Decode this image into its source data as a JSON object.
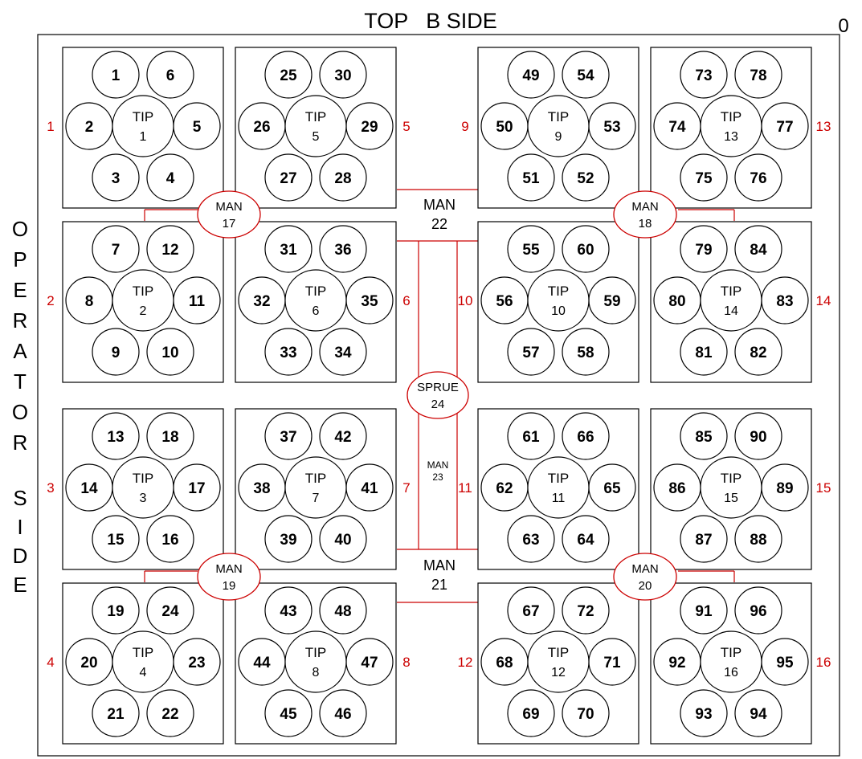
{
  "header": {
    "title": "TOP   B SIDE",
    "corner_label": "0"
  },
  "side_label": {
    "word1": [
      "O",
      "P",
      "E",
      "R",
      "A",
      "T",
      "O",
      "R"
    ],
    "word2": [
      "S",
      "I",
      "D",
      "E"
    ]
  },
  "colors": {
    "line": "#000000",
    "manifold": "#cc0000",
    "zone_label": "#cc0000",
    "background": "#ffffff"
  },
  "tip_prefix": "TIP",
  "blocks": [
    {
      "tip": "1",
      "zone": "1",
      "cavities": [
        "1",
        "6",
        "2",
        "5",
        "3",
        "4"
      ]
    },
    {
      "tip": "5",
      "zone": "5",
      "cavities": [
        "25",
        "30",
        "26",
        "29",
        "27",
        "28"
      ]
    },
    {
      "tip": "9",
      "zone": "9",
      "cavities": [
        "49",
        "54",
        "50",
        "53",
        "51",
        "52"
      ]
    },
    {
      "tip": "13",
      "zone": "13",
      "cavities": [
        "73",
        "78",
        "74",
        "77",
        "75",
        "76"
      ]
    },
    {
      "tip": "2",
      "zone": "2",
      "cavities": [
        "7",
        "12",
        "8",
        "11",
        "9",
        "10"
      ]
    },
    {
      "tip": "6",
      "zone": "6",
      "cavities": [
        "31",
        "36",
        "32",
        "35",
        "33",
        "34"
      ]
    },
    {
      "tip": "10",
      "zone": "10",
      "cavities": [
        "55",
        "60",
        "56",
        "59",
        "57",
        "58"
      ]
    },
    {
      "tip": "14",
      "zone": "14",
      "cavities": [
        "79",
        "84",
        "80",
        "83",
        "81",
        "82"
      ]
    },
    {
      "tip": "3",
      "zone": "3",
      "cavities": [
        "13",
        "18",
        "14",
        "17",
        "15",
        "16"
      ]
    },
    {
      "tip": "7",
      "zone": "7",
      "cavities": [
        "37",
        "42",
        "38",
        "41",
        "39",
        "40"
      ]
    },
    {
      "tip": "11",
      "zone": "11",
      "cavities": [
        "61",
        "66",
        "62",
        "65",
        "63",
        "64"
      ]
    },
    {
      "tip": "15",
      "zone": "15",
      "cavities": [
        "85",
        "90",
        "86",
        "89",
        "87",
        "88"
      ]
    },
    {
      "tip": "4",
      "zone": "4",
      "cavities": [
        "19",
        "24",
        "20",
        "23",
        "21",
        "22"
      ]
    },
    {
      "tip": "8",
      "zone": "8",
      "cavities": [
        "43",
        "48",
        "44",
        "47",
        "45",
        "46"
      ]
    },
    {
      "tip": "12",
      "zone": "12",
      "cavities": [
        "67",
        "72",
        "68",
        "71",
        "69",
        "70"
      ]
    },
    {
      "tip": "16",
      "zone": "16",
      "cavities": [
        "91",
        "96",
        "92",
        "95",
        "93",
        "94"
      ]
    }
  ],
  "manifolds": [
    {
      "label": "MAN",
      "number": "17"
    },
    {
      "label": "MAN",
      "number": "18"
    },
    {
      "label": "MAN",
      "number": "19"
    },
    {
      "label": "MAN",
      "number": "20"
    },
    {
      "label": "MAN",
      "number": "21"
    },
    {
      "label": "MAN",
      "number": "22"
    },
    {
      "label": "MAN",
      "number": "23"
    },
    {
      "label": "SPRUE",
      "number": "24"
    }
  ]
}
